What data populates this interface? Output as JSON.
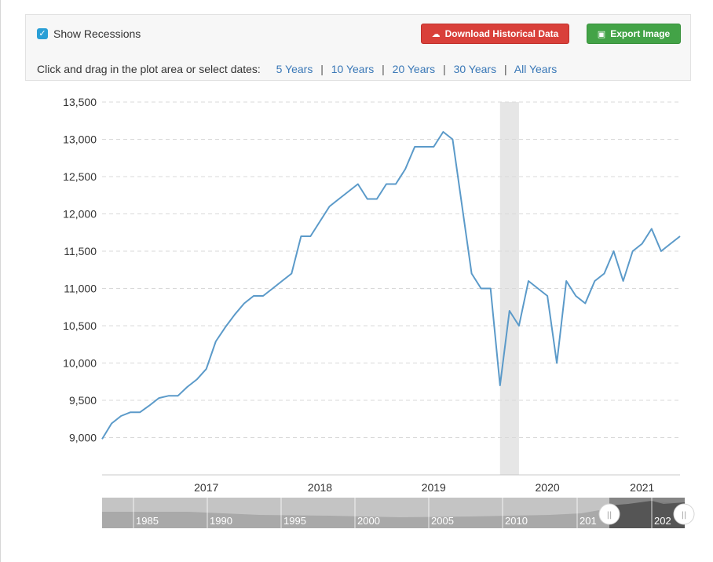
{
  "toolbar": {
    "show_recessions_label": "Show Recessions",
    "show_recessions_checked": true,
    "download_label": "Download Historical Data",
    "export_label": "Export Image",
    "dates_prompt": "Click and drag in the plot area or select dates:",
    "ranges": [
      "5 Years",
      "10 Years",
      "20 Years",
      "30 Years",
      "All Years"
    ]
  },
  "chart_data": {
    "type": "line",
    "title": "",
    "xlabel": "",
    "ylabel": "",
    "ylim": [
      8500,
      13500
    ],
    "yticks": [
      9000,
      9500,
      10000,
      10500,
      11000,
      11500,
      12000,
      12500,
      13000,
      13500
    ],
    "ytick_labels": [
      "9,000",
      "9,500",
      "10,000",
      "10,500",
      "11,000",
      "11,500",
      "12,000",
      "12,500",
      "13,000",
      "13,500"
    ],
    "xlim": [
      "2016-08",
      "2021-09"
    ],
    "xtick_labels": [
      "2017",
      "2018",
      "2019",
      "2020",
      "2021"
    ],
    "grid": true,
    "line_color": "#5b9ac9",
    "recession_color": "#e6e6e6",
    "recessions": [
      {
        "start": "2020-02",
        "end": "2020-04"
      }
    ],
    "series": [
      {
        "x": [
          "2016-08",
          "2016-09",
          "2016-10",
          "2016-11",
          "2016-12",
          "2017-01",
          "2017-02",
          "2017-03",
          "2017-04",
          "2017-05",
          "2017-06",
          "2017-07",
          "2017-08",
          "2017-09",
          "2017-10",
          "2017-11",
          "2017-12",
          "2018-01",
          "2018-02",
          "2018-03",
          "2018-04",
          "2018-05",
          "2018-06",
          "2018-07",
          "2018-08",
          "2018-09",
          "2018-10",
          "2018-11",
          "2018-12",
          "2019-01",
          "2019-02",
          "2019-03",
          "2019-04",
          "2019-05",
          "2019-06",
          "2019-07",
          "2019-08",
          "2019-09",
          "2019-10",
          "2019-11",
          "2019-12",
          "2020-01",
          "2020-02",
          "2020-03",
          "2020-04",
          "2020-05",
          "2020-06",
          "2020-07",
          "2020-08",
          "2020-09",
          "2020-10",
          "2020-11",
          "2020-12",
          "2021-01",
          "2021-02",
          "2021-03",
          "2021-04",
          "2021-05",
          "2021-06",
          "2021-07",
          "2021-08",
          "2021-09"
        ],
        "values": [
          8980,
          9190,
          9290,
          9340,
          9340,
          9430,
          9530,
          9560,
          9560,
          9680,
          9780,
          9920,
          10290,
          10480,
          10650,
          10800,
          10900,
          10900,
          11000,
          11100,
          11200,
          11700,
          11700,
          11900,
          12100,
          12200,
          12300,
          12400,
          12200,
          12200,
          12400,
          12400,
          12600,
          12900,
          12900,
          12900,
          13100,
          13000,
          12100,
          11200,
          11000,
          11000,
          9700,
          10700,
          10500,
          11100,
          11000,
          10900,
          10000,
          11100,
          10900,
          10800,
          11100,
          11200,
          11500,
          11100,
          11500,
          11600,
          11800,
          11500,
          11600,
          11700
        ]
      }
    ]
  },
  "navigator": {
    "labels": [
      "1985",
      "1990",
      "1995",
      "2000",
      "2005",
      "2010",
      "201",
      "202"
    ],
    "handle_left_glyph": "||",
    "handle_right_glyph": "||"
  }
}
